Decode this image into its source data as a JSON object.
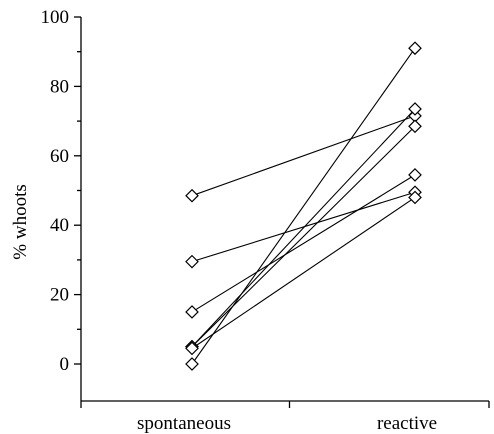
{
  "chart_data": {
    "type": "line",
    "title": "",
    "xlabel": "",
    "ylabel": "% whoots",
    "categories": [
      "spontaneous",
      "reactive"
    ],
    "ylim": [
      0,
      100
    ],
    "yticks": [
      0,
      20,
      40,
      60,
      80,
      100
    ],
    "marker": "diamond",
    "grid": false,
    "legend": "none",
    "series": [
      {
        "values": [
          48.5,
          71.5
        ]
      },
      {
        "values": [
          29.5,
          49.5
        ]
      },
      {
        "values": [
          15,
          54.5
        ]
      },
      {
        "values": [
          5,
          73.5
        ]
      },
      {
        "values": [
          5,
          68.5
        ]
      },
      {
        "values": [
          4.5,
          48
        ]
      },
      {
        "values": [
          0,
          91
        ]
      }
    ]
  }
}
